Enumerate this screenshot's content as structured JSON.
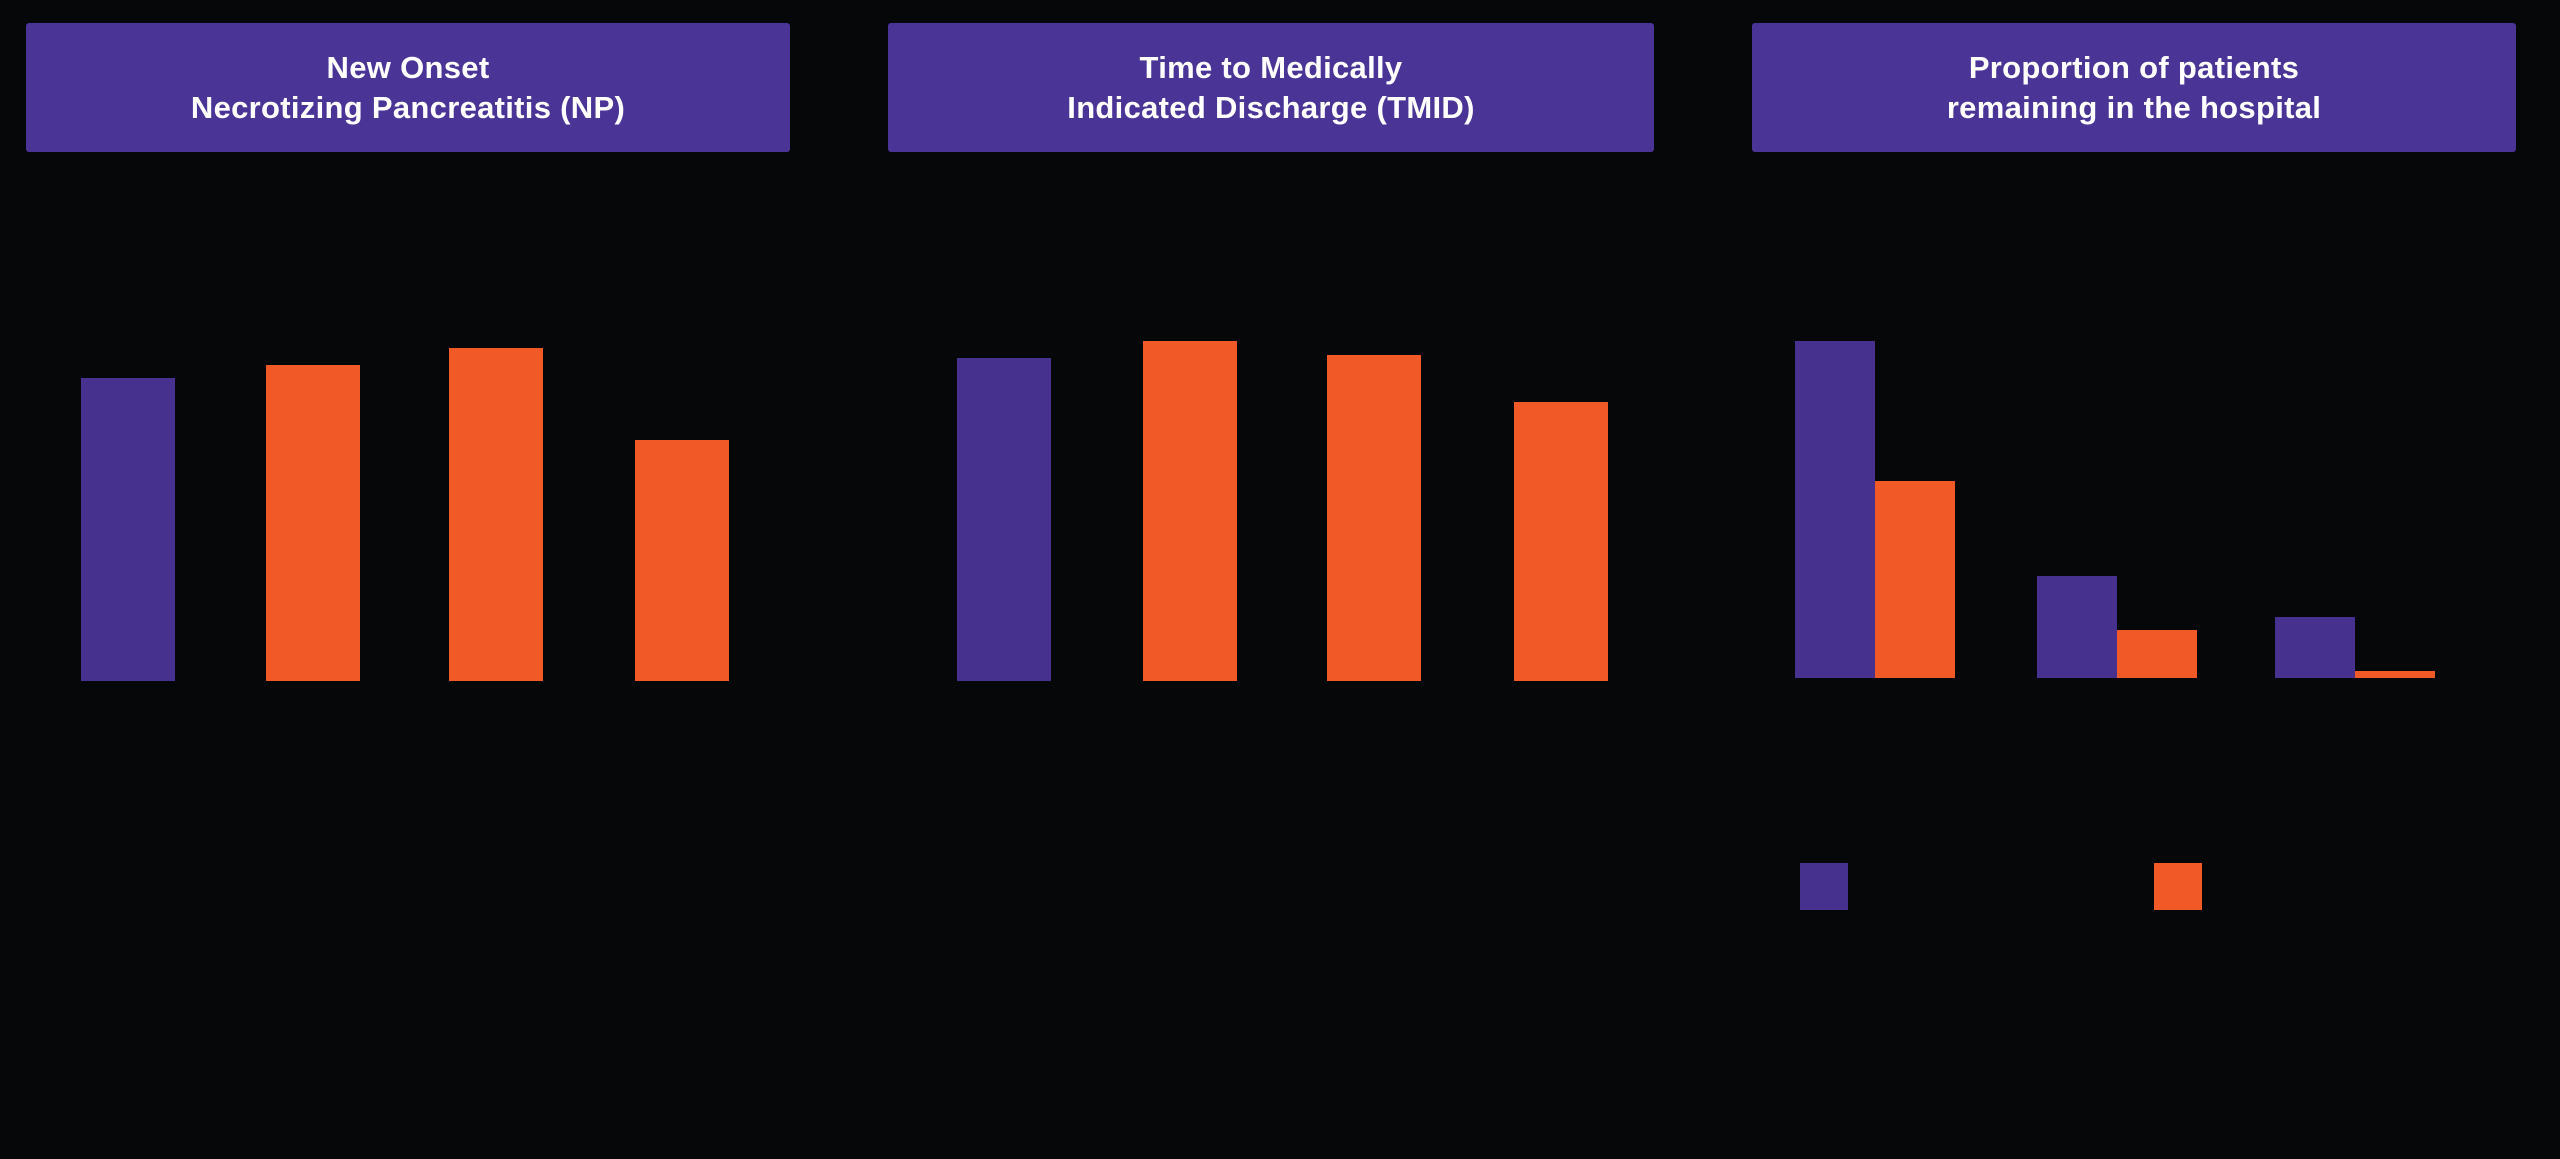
{
  "colors": {
    "background": "#050708",
    "header_purple": "#4a3496",
    "purple": "#47318f",
    "orange": "#f15a27",
    "title_text": "#ffffff"
  },
  "panels": [
    {
      "title_line1": "New Onset",
      "title_line2": "Necrotizing Pancreatitis (NP)"
    },
    {
      "title_line1": "Time to Medically",
      "title_line2": "Indicated Discharge (TMID)"
    },
    {
      "title_line1": "Proportion of patients",
      "title_line2": "remaining in the hospital"
    }
  ],
  "legend": {
    "swatches": [
      {
        "series": "purple",
        "color_key": "purple"
      },
      {
        "series": "orange",
        "color_key": "orange"
      }
    ],
    "labels_visible": false
  },
  "chart_data": [
    {
      "type": "bar",
      "title": "New Onset Necrotizing Pancreatitis (NP)",
      "value_scale": "relative bar height, % of tallest bar in figure (no axis or numeric labels visible)",
      "axis_labels_visible": false,
      "category_labels_visible": false,
      "bars": [
        {
          "color": "purple",
          "value": 89
        },
        {
          "color": "orange",
          "value": 93
        },
        {
          "color": "orange",
          "value": 98
        },
        {
          "color": "orange",
          "value": 71
        }
      ]
    },
    {
      "type": "bar",
      "title": "Time to Medically Indicated Discharge (TMID)",
      "value_scale": "relative bar height, % of tallest bar in figure (no axis or numeric labels visible)",
      "axis_labels_visible": false,
      "category_labels_visible": false,
      "bars": [
        {
          "color": "purple",
          "value": 95
        },
        {
          "color": "orange",
          "value": 100
        },
        {
          "color": "orange",
          "value": 96
        },
        {
          "color": "orange",
          "value": 82
        }
      ]
    },
    {
      "type": "bar",
      "title": "Proportion of patients remaining in the hospital",
      "value_scale": "relative bar height, % of tallest bar in figure (no axis or numeric labels visible)",
      "axis_labels_visible": false,
      "category_labels_visible": false,
      "grouped": true,
      "groups": [
        {
          "purple": 99,
          "orange": 58
        },
        {
          "purple": 30,
          "orange": 14
        },
        {
          "purple": 18,
          "orange": 2
        }
      ]
    }
  ]
}
